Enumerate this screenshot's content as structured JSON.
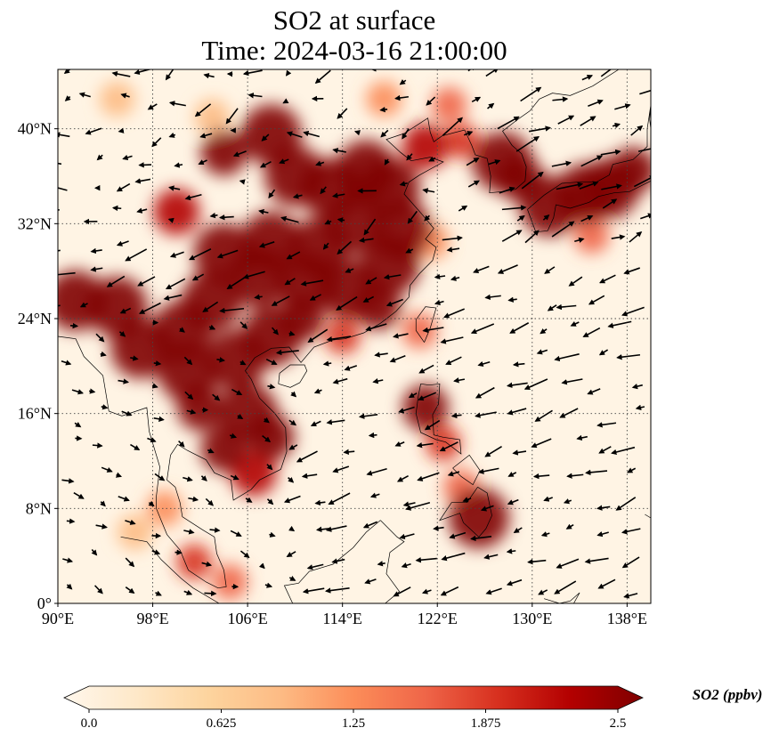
{
  "figure": {
    "title": "SO2 at surface",
    "subtitle": "Time: 2024-03-16 21:00:00"
  },
  "map": {
    "projection": "PlateCarree",
    "extent": {
      "lon": [
        90,
        140
      ],
      "lat": [
        0,
        45
      ]
    },
    "lat_ticks": [
      {
        "value": 0,
        "label": "0°"
      },
      {
        "value": 8,
        "label": "8°N"
      },
      {
        "value": 16,
        "label": "16°N"
      },
      {
        "value": 24,
        "label": "24°N"
      },
      {
        "value": 32,
        "label": "32°N"
      },
      {
        "value": 40,
        "label": "40°N"
      }
    ],
    "lon_ticks": [
      {
        "value": 90,
        "label": "90°E"
      },
      {
        "value": 98,
        "label": "98°E"
      },
      {
        "value": 106,
        "label": "106°E"
      },
      {
        "value": 114,
        "label": "114°E"
      },
      {
        "value": 122,
        "label": "122°E"
      },
      {
        "value": 130,
        "label": "130°E"
      },
      {
        "value": 138,
        "label": "138°E"
      }
    ],
    "gridlines": "dotted",
    "so2_hotspots_lonlat_level": [
      [
        108,
        39.5,
        3.0
      ],
      [
        104,
        38,
        2.5
      ],
      [
        110,
        36,
        3.2
      ],
      [
        113,
        35,
        3.5
      ],
      [
        116,
        36.5,
        3.2
      ],
      [
        118,
        35,
        3.0
      ],
      [
        115,
        32,
        3.2
      ],
      [
        112,
        30,
        3.0
      ],
      [
        108,
        30.5,
        3.0
      ],
      [
        104,
        29.5,
        2.8
      ],
      [
        107,
        27.5,
        3.0
      ],
      [
        111,
        27,
        3.2
      ],
      [
        114.5,
        26.5,
        3.0
      ],
      [
        118,
        28.5,
        2.8
      ],
      [
        119,
        31.5,
        2.8
      ],
      [
        117,
        25,
        2.5
      ],
      [
        100,
        33,
        2.2
      ],
      [
        103,
        25.5,
        3.2
      ],
      [
        100.5,
        23,
        3.0
      ],
      [
        95,
        25,
        3.2
      ],
      [
        91.5,
        25.5,
        3.0
      ],
      [
        97,
        21.5,
        3.0
      ],
      [
        101,
        19.5,
        3.0
      ],
      [
        105,
        20.5,
        3.2
      ],
      [
        108,
        22.5,
        2.8
      ],
      [
        110.5,
        24,
        2.6
      ],
      [
        106,
        16,
        2.8
      ],
      [
        104,
        13,
        2.6
      ],
      [
        102,
        16.5,
        2.6
      ],
      [
        108,
        14,
        2.6
      ],
      [
        106.5,
        11,
        2.2
      ],
      [
        121,
        38.5,
        2.2
      ],
      [
        124,
        39,
        1.8
      ],
      [
        127.5,
        37.2,
        2.8
      ],
      [
        129,
        35.8,
        2.6
      ],
      [
        134.5,
        34.5,
        3.2
      ],
      [
        136.5,
        35,
        3.0
      ],
      [
        131.5,
        33.5,
        2.8
      ],
      [
        138.5,
        36.5,
        2.4
      ],
      [
        135,
        31,
        1.5
      ],
      [
        121,
        16.5,
        2.6
      ],
      [
        122.5,
        13.5,
        1.8
      ],
      [
        125.5,
        7.2,
        2.8
      ],
      [
        124,
        9.8,
        1.6
      ],
      [
        101.5,
        3.5,
        1.8
      ],
      [
        104.5,
        1.8,
        1.5
      ],
      [
        96.5,
        6,
        0.9
      ],
      [
        99,
        8,
        1.2
      ],
      [
        121.5,
        30.5,
        1.2
      ],
      [
        114,
        22.5,
        1.8
      ],
      [
        120.5,
        23,
        1.6
      ],
      [
        117.5,
        42.5,
        1.2
      ],
      [
        123,
        42,
        1.5
      ],
      [
        103,
        41,
        0.8
      ],
      [
        95,
        42.5,
        0.8
      ]
    ],
    "wind_flow": "northeasterly over the sea, southwesterly over Indochina"
  },
  "colorbar": {
    "label": "SO2 (ppbv)",
    "min": 0.0,
    "max": 2.5,
    "ticks": [
      "0.0",
      "0.625",
      "1.25",
      "1.875",
      "2.5"
    ],
    "colormap": "OrRd",
    "stops": [
      "#fff7ec",
      "#fee8c8",
      "#fdd49e",
      "#fdbb84",
      "#fc8d59",
      "#ef6548",
      "#d7301f",
      "#b30000",
      "#7f0000"
    ]
  }
}
